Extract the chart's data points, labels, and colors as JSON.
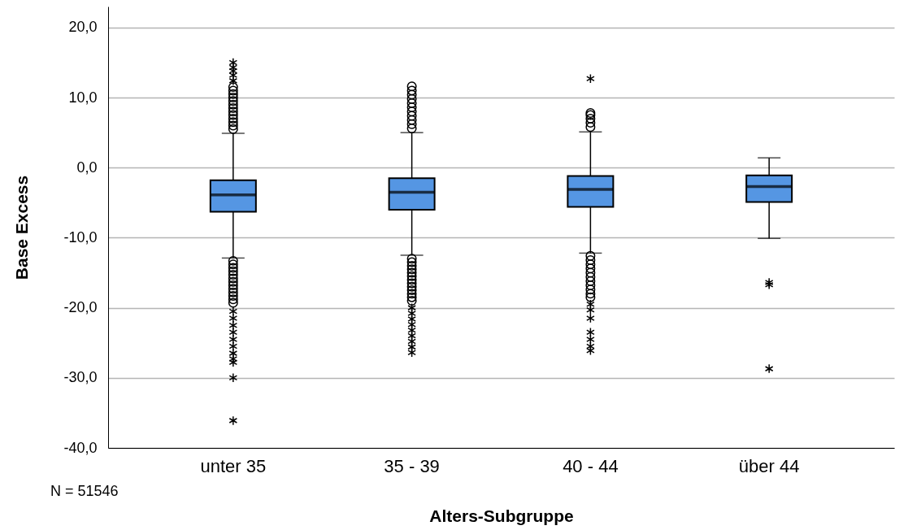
{
  "chart_data": {
    "type": "box",
    "xlabel": "Alters-Subgruppe",
    "ylabel": "Base Excess",
    "categories": [
      "unter 35",
      "35 - 39",
      "40 - 44",
      "über 44"
    ],
    "series": [
      {
        "color": "#5596e3",
        "boxes": [
          {
            "low": -12.9,
            "q1": -6.3,
            "median": -3.9,
            "q3": -1.8,
            "high": 4.9,
            "outliers": [
              5.5,
              6,
              6.5,
              7,
              7.5,
              8,
              8.5,
              9,
              9.5,
              10,
              10.5,
              11,
              11.5,
              12.4,
              13.2,
              13.8,
              14.3,
              15.0,
              -13.3,
              -13.8,
              -14.3,
              -14.8,
              -15.3,
              -15.8,
              -16.3,
              -16.8,
              -17.3,
              -17.8,
              -18.3,
              -18.8,
              -19.3,
              -20.5,
              -21.5,
              -22.5,
              -23.5,
              -24.5,
              -25.5,
              -26.5,
              -27.3,
              -27.8,
              -30.0,
              -36.1
            ]
          },
          {
            "low": -12.5,
            "q1": -6.0,
            "median": -3.5,
            "q3": -1.5,
            "high": 5.0,
            "outliers": [
              5.6,
              6.2,
              6.8,
              7.4,
              8,
              8.6,
              9.2,
              9.8,
              10.4,
              11,
              11.6,
              -13,
              -13.5,
              -14,
              -14.5,
              -15,
              -15.5,
              -16,
              -16.5,
              -17,
              -17.5,
              -18,
              -18.5,
              -19,
              -20,
              -20.8,
              -21.6,
              -22.4,
              -23.2,
              -24,
              -24.8,
              -25.6,
              -26.4
            ]
          },
          {
            "low": -12.2,
            "q1": -5.6,
            "median": -3.1,
            "q3": -1.2,
            "high": 5.1,
            "outliers": [
              5.8,
              6.4,
              7,
              7.5,
              7.8,
              12.7,
              -12.6,
              -13.2,
              -13.8,
              -14.4,
              -15,
              -15.6,
              -16.2,
              -16.8,
              -17.4,
              -18,
              -18.5,
              -19.5,
              -20.3,
              -21.5,
              -23.5,
              -24.5,
              -25.5,
              -26.1
            ]
          },
          {
            "low": -10.1,
            "q1": -4.9,
            "median": -2.7,
            "q3": -1.1,
            "high": 1.4,
            "outliers": [
              -16.4,
              -16.7,
              -28.7
            ]
          }
        ]
      }
    ],
    "ylim": [
      -40,
      23
    ],
    "yticks": [
      {
        "value": -40,
        "label": "-40,0"
      },
      {
        "value": -30,
        "label": "-30,0"
      },
      {
        "value": -20,
        "label": "-20,0"
      },
      {
        "value": -10,
        "label": "-10,0"
      },
      {
        "value": 0,
        "label": "0,0"
      },
      {
        "value": 10,
        "label": "10,0"
      },
      {
        "value": 20,
        "label": "20,0"
      }
    ],
    "grid": "y",
    "annotations": [
      "N = 51546"
    ]
  }
}
